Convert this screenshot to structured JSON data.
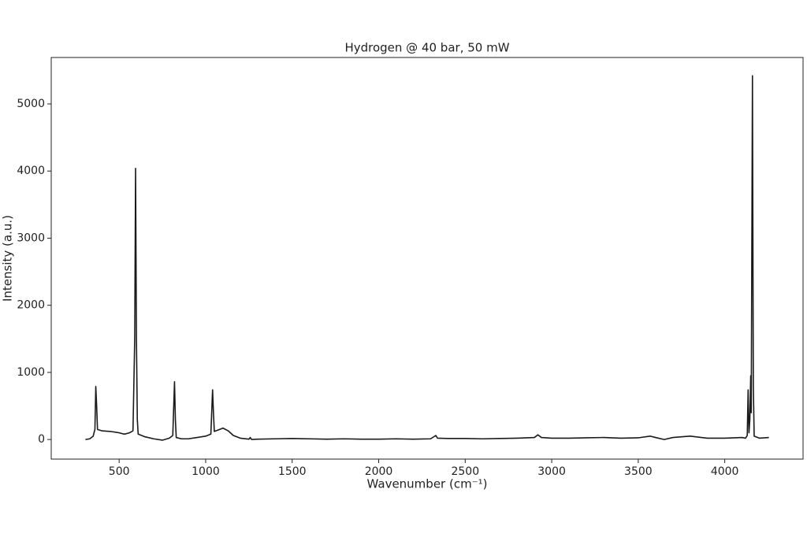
{
  "chart_data": {
    "type": "line",
    "title": "Hydrogen @ 40 bar, 50 mW",
    "xlabel": "Wavenumber (cm⁻¹)",
    "ylabel": "Intensity (a.u.)",
    "color": "#1a1a1a",
    "x": [
      305,
      330,
      350,
      360,
      365,
      370,
      375,
      400,
      450,
      500,
      530,
      560,
      580,
      590,
      595,
      600,
      605,
      610,
      650,
      700,
      750,
      790,
      810,
      820,
      825,
      830,
      860,
      900,
      950,
      1000,
      1030,
      1040,
      1045,
      1050,
      1080,
      1100,
      1130,
      1160,
      1200,
      1250,
      1258,
      1265,
      1300,
      1400,
      1500,
      1600,
      1700,
      1800,
      1900,
      2000,
      2100,
      2200,
      2300,
      2330,
      2340,
      2400,
      2500,
      2600,
      2700,
      2800,
      2900,
      2920,
      2940,
      3000,
      3100,
      3200,
      3300,
      3400,
      3500,
      3570,
      3600,
      3650,
      3700,
      3800,
      3900,
      4000,
      4100,
      4120,
      4130,
      4135,
      4140,
      4145,
      4150,
      4153,
      4160,
      4165,
      4170,
      4200,
      4255
    ],
    "values": [
      0,
      10,
      50,
      150,
      790,
      500,
      150,
      130,
      120,
      100,
      80,
      100,
      130,
      1500,
      4040,
      1500,
      300,
      80,
      40,
      10,
      -10,
      20,
      60,
      860,
      300,
      30,
      10,
      10,
      30,
      50,
      80,
      740,
      400,
      120,
      150,
      170,
      130,
      60,
      20,
      5,
      30,
      0,
      5,
      10,
      15,
      10,
      5,
      10,
      5,
      5,
      10,
      5,
      10,
      60,
      20,
      15,
      15,
      10,
      15,
      20,
      30,
      70,
      30,
      20,
      20,
      25,
      30,
      20,
      25,
      50,
      30,
      0,
      30,
      50,
      20,
      20,
      30,
      20,
      60,
      740,
      100,
      300,
      950,
      400,
      5420,
      800,
      50,
      20,
      30
    ],
    "xlim": [
      107.5,
      4452.5
    ],
    "ylim": [
      -292,
      5692
    ],
    "xticks": [
      500,
      1000,
      1500,
      2000,
      2500,
      3000,
      3500,
      4000
    ],
    "yticks": [
      0,
      1000,
      2000,
      3000,
      4000,
      5000
    ]
  }
}
